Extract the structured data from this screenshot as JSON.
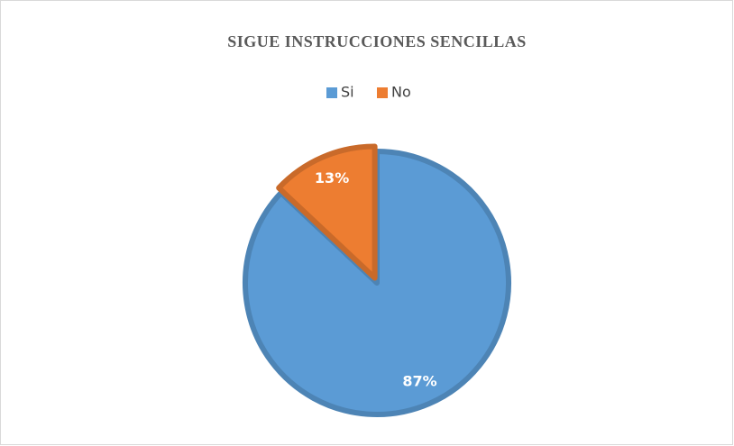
{
  "chart_data": {
    "type": "pie",
    "title": "SIGUE INSTRUCCIONES SENCILLAS",
    "categories": [
      "Si",
      "No"
    ],
    "values": [
      87,
      13
    ],
    "value_labels": [
      "87%",
      "13%"
    ],
    "colors": [
      "#5b9bd5",
      "#ed7d31"
    ],
    "legend": "top"
  }
}
